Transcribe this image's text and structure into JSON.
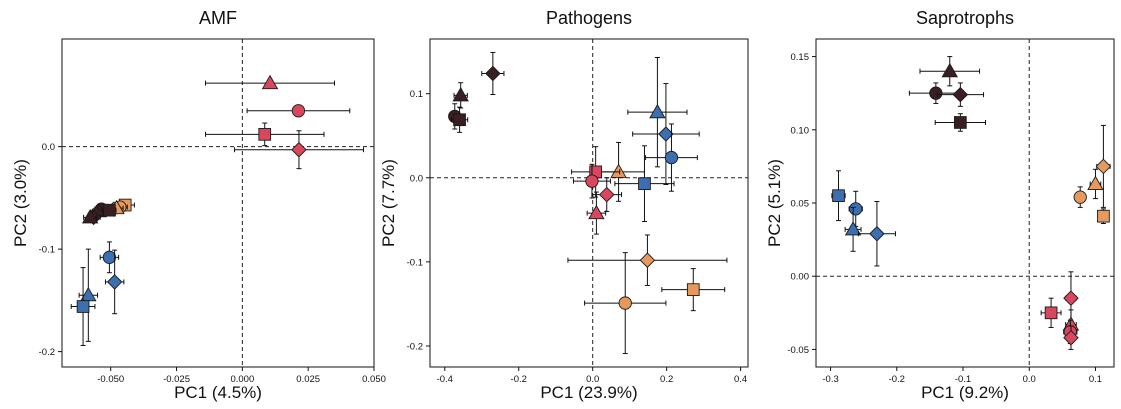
{
  "colors": {
    "red": "#d9475e",
    "blue": "#3b6fb0",
    "orange": "#e6995f",
    "dark": "#3a1f22",
    "errorbar": "#111111",
    "frame": "#111111",
    "refline": "#222222"
  },
  "marker_shapes": [
    "triangle",
    "circle",
    "square",
    "diamond"
  ],
  "chart_data": [
    {
      "type": "scatter",
      "title": "AMF",
      "xlabel": "PC1 (4.5%)",
      "ylabel": "PC2 (3.0%)",
      "xlim": [
        -0.0685,
        0.05
      ],
      "ylim": [
        -0.215,
        0.105
      ],
      "xticks": [
        -0.05,
        -0.025,
        0.0,
        0.025,
        0.05
      ],
      "xticklabels": [
        "-0.050",
        "-0.025",
        "0.000",
        "0.025",
        "0.050"
      ],
      "yticks": [
        -0.2,
        -0.1,
        0.0
      ],
      "yticklabels": [
        "-0.2",
        "-0.1",
        "0.0"
      ],
      "reference_lines": {
        "x": 0,
        "y": 0
      },
      "points": [
        {
          "group": "red",
          "shape": "triangle",
          "x": 0.0105,
          "y": 0.062,
          "xerr": 0.0245,
          "yerr": 0.0
        },
        {
          "group": "red",
          "shape": "circle",
          "x": 0.0213,
          "y": 0.035,
          "xerr": 0.0195,
          "yerr": 0.0
        },
        {
          "group": "red",
          "shape": "square",
          "x": 0.0085,
          "y": 0.012,
          "xerr": 0.0225,
          "yerr": 0.011
        },
        {
          "group": "red",
          "shape": "diamond",
          "x": 0.0215,
          "y": -0.003,
          "xerr": 0.0245,
          "yerr": 0.0185
        },
        {
          "group": "orange",
          "shape": "square",
          "x": -0.0445,
          "y": -0.057,
          "xerr": 0.0035,
          "yerr": 0.004
        },
        {
          "group": "orange",
          "shape": "circle",
          "x": -0.0465,
          "y": -0.059,
          "xerr": 0.0028,
          "yerr": 0.004
        },
        {
          "group": "orange",
          "shape": "diamond",
          "x": -0.0488,
          "y": -0.061,
          "xerr": 0.0025,
          "yerr": 0.004
        },
        {
          "group": "orange",
          "shape": "triangle",
          "x": -0.0478,
          "y": -0.06,
          "xerr": 0.0025,
          "yerr": 0.004
        },
        {
          "group": "dark",
          "shape": "circle",
          "x": -0.0535,
          "y": -0.061,
          "xerr": 0.0025,
          "yerr": 0.004
        },
        {
          "group": "dark",
          "shape": "triangle",
          "x": -0.0545,
          "y": -0.063,
          "xerr": 0.0025,
          "yerr": 0.004
        },
        {
          "group": "dark",
          "shape": "square",
          "x": -0.0505,
          "y": -0.062,
          "xerr": 0.0025,
          "yerr": 0.004
        },
        {
          "group": "dark",
          "shape": "diamond",
          "x": -0.0555,
          "y": -0.065,
          "xerr": 0.0025,
          "yerr": 0.004
        },
        {
          "group": "dark",
          "shape": "diamond",
          "x": -0.0565,
          "y": -0.069,
          "xerr": 0.0025,
          "yerr": 0.004
        },
        {
          "group": "dark",
          "shape": "triangle",
          "x": -0.0578,
          "y": -0.069,
          "xerr": 0.0025,
          "yerr": 0.004
        },
        {
          "group": "blue",
          "shape": "circle",
          "x": -0.0505,
          "y": -0.108,
          "xerr": 0.0035,
          "yerr": 0.015
        },
        {
          "group": "blue",
          "shape": "diamond",
          "x": -0.0485,
          "y": -0.132,
          "xerr": 0.0035,
          "yerr": 0.031
        },
        {
          "group": "blue",
          "shape": "triangle",
          "x": -0.0585,
          "y": -0.145,
          "xerr": 0.0035,
          "yerr": 0.045
        },
        {
          "group": "blue",
          "shape": "square",
          "x": -0.0605,
          "y": -0.156,
          "xerr": 0.0045,
          "yerr": 0.038
        }
      ]
    },
    {
      "type": "scatter",
      "title": "Pathogens",
      "xlabel": "PC1 (23.9%)",
      "ylabel": "PC2 (7.7%)",
      "xlim": [
        -0.44,
        0.42
      ],
      "ylim": [
        -0.225,
        0.165
      ],
      "xticks": [
        -0.4,
        -0.2,
        0.0,
        0.2,
        0.4
      ],
      "xticklabels": [
        "-0.4",
        "-0.2",
        "0.0",
        "0.2",
        "0.4"
      ],
      "yticks": [
        -0.2,
        -0.1,
        0.0,
        0.1
      ],
      "yticklabels": [
        "-0.2",
        "-0.1",
        "0.0",
        "0.1"
      ],
      "reference_lines": {
        "x": 0,
        "y": 0
      },
      "points": [
        {
          "group": "dark",
          "shape": "diamond",
          "x": -0.27,
          "y": 0.124,
          "xerr": 0.03,
          "yerr": 0.025
        },
        {
          "group": "dark",
          "shape": "triangle",
          "x": -0.357,
          "y": 0.098,
          "xerr": 0.018,
          "yerr": 0.015
        },
        {
          "group": "dark",
          "shape": "circle",
          "x": -0.373,
          "y": 0.073,
          "xerr": 0.015,
          "yerr": 0.015
        },
        {
          "group": "dark",
          "shape": "square",
          "x": -0.36,
          "y": 0.069,
          "xerr": 0.022,
          "yerr": 0.015
        },
        {
          "group": "blue",
          "shape": "triangle",
          "x": 0.175,
          "y": 0.078,
          "xerr": 0.08,
          "yerr": 0.065
        },
        {
          "group": "blue",
          "shape": "diamond",
          "x": 0.198,
          "y": 0.052,
          "xerr": 0.09,
          "yerr": 0.06
        },
        {
          "group": "blue",
          "shape": "circle",
          "x": 0.213,
          "y": 0.024,
          "xerr": 0.07,
          "yerr": 0.04
        },
        {
          "group": "blue",
          "shape": "square",
          "x": 0.14,
          "y": -0.007,
          "xerr": 0.08,
          "yerr": 0.045
        },
        {
          "group": "orange",
          "shape": "triangle",
          "x": 0.07,
          "y": 0.007,
          "xerr": 0.07,
          "yerr": 0.035
        },
        {
          "group": "red",
          "shape": "square",
          "x": 0.008,
          "y": 0.007,
          "xerr": 0.065,
          "yerr": 0.03
        },
        {
          "group": "red",
          "shape": "circle",
          "x": -0.002,
          "y": -0.004,
          "xerr": 0.05,
          "yerr": 0.02
        },
        {
          "group": "red",
          "shape": "diamond",
          "x": 0.038,
          "y": -0.02,
          "xerr": 0.04,
          "yerr": 0.02
        },
        {
          "group": "red",
          "shape": "triangle",
          "x": 0.01,
          "y": -0.042,
          "xerr": 0.025,
          "yerr": 0.025
        },
        {
          "group": "orange",
          "shape": "diamond",
          "x": 0.148,
          "y": -0.098,
          "xerr": 0.215,
          "yerr": 0.03
        },
        {
          "group": "orange",
          "shape": "square",
          "x": 0.272,
          "y": -0.133,
          "xerr": 0.085,
          "yerr": 0.025
        },
        {
          "group": "orange",
          "shape": "circle",
          "x": 0.088,
          "y": -0.149,
          "xerr": 0.11,
          "yerr": 0.06
        }
      ]
    },
    {
      "type": "scatter",
      "title": "Saprotrophs",
      "xlabel": "PC1 (9.2%)",
      "ylabel": "PC2 (5.1%)",
      "xlim": [
        -0.322,
        0.128
      ],
      "ylim": [
        -0.062,
        0.162
      ],
      "xticks": [
        -0.3,
        -0.2,
        -0.1,
        0.0,
        0.1
      ],
      "xticklabels": [
        "-0.3",
        "-0.2",
        "-0.1",
        "0.0",
        "0.1"
      ],
      "yticks": [
        -0.05,
        0.0,
        0.05,
        0.1,
        0.15
      ],
      "yticklabels": [
        "-0.05",
        "0.00",
        "0.05",
        "0.10",
        "0.15"
      ],
      "reference_lines": {
        "x": 0,
        "y": 0
      },
      "points": [
        {
          "group": "dark",
          "shape": "triangle",
          "x": -0.12,
          "y": 0.14,
          "xerr": 0.045,
          "yerr": 0.01
        },
        {
          "group": "dark",
          "shape": "circle",
          "x": -0.141,
          "y": 0.125,
          "xerr": 0.04,
          "yerr": 0.007
        },
        {
          "group": "dark",
          "shape": "diamond",
          "x": -0.104,
          "y": 0.124,
          "xerr": 0.035,
          "yerr": 0.008
        },
        {
          "group": "dark",
          "shape": "square",
          "x": -0.104,
          "y": 0.105,
          "xerr": 0.038,
          "yerr": 0.006
        },
        {
          "group": "blue",
          "shape": "square",
          "x": -0.288,
          "y": 0.055,
          "xerr": 0.01,
          "yerr": 0.017
        },
        {
          "group": "blue",
          "shape": "circle",
          "x": -0.262,
          "y": 0.046,
          "xerr": 0.01,
          "yerr": 0.012
        },
        {
          "group": "blue",
          "shape": "triangle",
          "x": -0.266,
          "y": 0.032,
          "xerr": 0.012,
          "yerr": 0.015
        },
        {
          "group": "blue",
          "shape": "diamond",
          "x": -0.23,
          "y": 0.029,
          "xerr": 0.028,
          "yerr": 0.022
        },
        {
          "group": "orange",
          "shape": "diamond",
          "x": 0.112,
          "y": 0.075,
          "xerr": 0.01,
          "yerr": 0.028
        },
        {
          "group": "orange",
          "shape": "triangle",
          "x": 0.1,
          "y": 0.063,
          "xerr": 0.008,
          "yerr": 0.01
        },
        {
          "group": "orange",
          "shape": "circle",
          "x": 0.077,
          "y": 0.054,
          "xerr": 0.008,
          "yerr": 0.007
        },
        {
          "group": "orange",
          "shape": "square",
          "x": 0.112,
          "y": 0.041,
          "xerr": 0.006,
          "yerr": 0.005
        },
        {
          "group": "red",
          "shape": "square",
          "x": 0.033,
          "y": -0.025,
          "xerr": 0.015,
          "yerr": 0.01
        },
        {
          "group": "red",
          "shape": "diamond",
          "x": 0.063,
          "y": -0.015,
          "xerr": 0.008,
          "yerr": 0.018
        },
        {
          "group": "red",
          "shape": "triangle",
          "x": 0.063,
          "y": -0.033,
          "xerr": 0.008,
          "yerr": 0.01
        },
        {
          "group": "red",
          "shape": "circle",
          "x": 0.062,
          "y": -0.038,
          "xerr": 0.01,
          "yerr": 0.008
        },
        {
          "group": "red",
          "shape": "diamond",
          "x": 0.063,
          "y": -0.042,
          "xerr": 0.006,
          "yerr": 0.008
        }
      ]
    }
  ]
}
